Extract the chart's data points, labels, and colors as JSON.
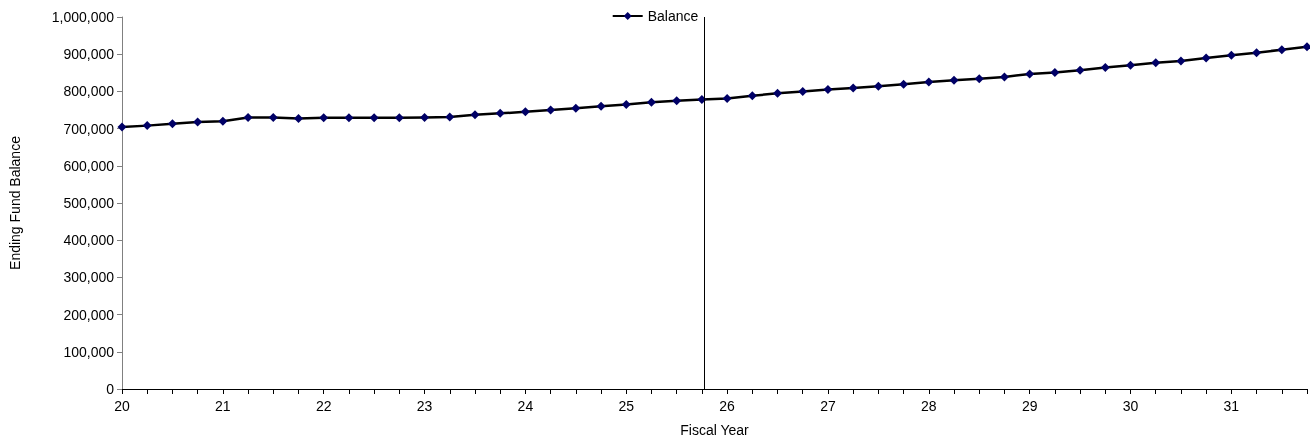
{
  "chart_data": {
    "type": "line",
    "xlabel": "Fiscal Year",
    "ylabel": "Ending Fund Balance",
    "x": [
      20,
      20.25,
      20.5,
      20.75,
      21,
      21.25,
      21.5,
      21.75,
      22,
      22.25,
      22.5,
      22.75,
      23,
      23.25,
      23.5,
      23.75,
      24,
      24.25,
      24.5,
      24.75,
      25,
      25.25,
      25.5,
      25.75,
      26,
      26.25,
      26.5,
      26.75,
      27,
      27.25,
      27.5,
      27.75,
      28,
      28.25,
      28.5,
      28.75,
      29,
      29.25,
      29.5,
      29.75,
      30,
      30.25,
      30.5,
      30.75,
      31,
      31.25,
      31.5,
      31.75
    ],
    "series": [
      {
        "name": "Balance",
        "color": "#000066",
        "values": [
          704000,
          708000,
          713000,
          718000,
          720000,
          730000,
          730000,
          727000,
          729000,
          729000,
          729000,
          729000,
          730000,
          731000,
          737000,
          741000,
          745000,
          750000,
          755000,
          760000,
          765000,
          771000,
          775000,
          778000,
          781000,
          788000,
          795000,
          800000,
          805000,
          809000,
          814000,
          819000,
          825000,
          830000,
          834000,
          839000,
          847000,
          851000,
          857000,
          864000,
          870000,
          877000,
          882000,
          890000,
          897000,
          904000,
          912000,
          920000
        ]
      }
    ],
    "xlim": [
      20,
      31.75
    ],
    "xticks": [
      20,
      {
        "value": 20.25,
        "label": null
      },
      {
        "value": 20.5,
        "label": null
      },
      {
        "value": 20.75,
        "label": null
      },
      21,
      {
        "value": 21.25,
        "label": null
      },
      {
        "value": 21.5,
        "label": null
      },
      {
        "value": 21.75,
        "label": null
      },
      22,
      {
        "value": 22.25,
        "label": null
      },
      {
        "value": 22.5,
        "label": null
      },
      {
        "value": 22.75,
        "label": null
      },
      23,
      {
        "value": 23.25,
        "label": null
      },
      {
        "value": 23.5,
        "label": null
      },
      {
        "value": 23.75,
        "label": null
      },
      24,
      {
        "value": 24.25,
        "label": null
      },
      {
        "value": 24.5,
        "label": null
      },
      {
        "value": 24.75,
        "label": null
      },
      25,
      {
        "value": 25.25,
        "label": null
      },
      {
        "value": 25.5,
        "label": null
      },
      {
        "value": 25.75,
        "label": null
      },
      26,
      {
        "value": 26.25,
        "label": null
      },
      {
        "value": 26.5,
        "label": null
      },
      {
        "value": 26.75,
        "label": null
      },
      27,
      {
        "value": 27.25,
        "label": null
      },
      {
        "value": 27.5,
        "label": null
      },
      {
        "value": 27.75,
        "label": null
      },
      28,
      {
        "value": 28.25,
        "label": null
      },
      {
        "value": 28.5,
        "label": null
      },
      {
        "value": 28.75,
        "label": null
      },
      29,
      {
        "value": 29.25,
        "label": null
      },
      {
        "value": 29.5,
        "label": null
      },
      {
        "value": 29.75,
        "label": null
      },
      30,
      {
        "value": 30.25,
        "label": null
      },
      {
        "value": 30.5,
        "label": null
      },
      {
        "value": 30.75,
        "label": null
      },
      31,
      {
        "value": 31.25,
        "label": null
      },
      {
        "value": 31.5,
        "label": null
      },
      {
        "value": 31.75,
        "label": null
      }
    ],
    "ylim": [
      0,
      1000000
    ],
    "yticks": [
      0,
      {
        "value": 100000,
        "label": "100,000"
      },
      {
        "value": 200000,
        "label": "200,000"
      },
      {
        "value": 300000,
        "label": "300,000"
      },
      {
        "value": 400000,
        "label": "400,000"
      },
      {
        "value": 500000,
        "label": "500,000"
      },
      {
        "value": 600000,
        "label": "600,000"
      },
      {
        "value": 700000,
        "label": "700,000"
      },
      {
        "value": 800000,
        "label": "800,000"
      },
      {
        "value": 900000,
        "label": "900,000"
      },
      {
        "value": 1000000,
        "label": "1,000,000"
      }
    ],
    "ref_lines": [
      {
        "axis": "x",
        "value": 25.77,
        "color": "#000000"
      }
    ],
    "grid": false,
    "legend": "top",
    "marker": "diamond",
    "line_style": "solid"
  }
}
